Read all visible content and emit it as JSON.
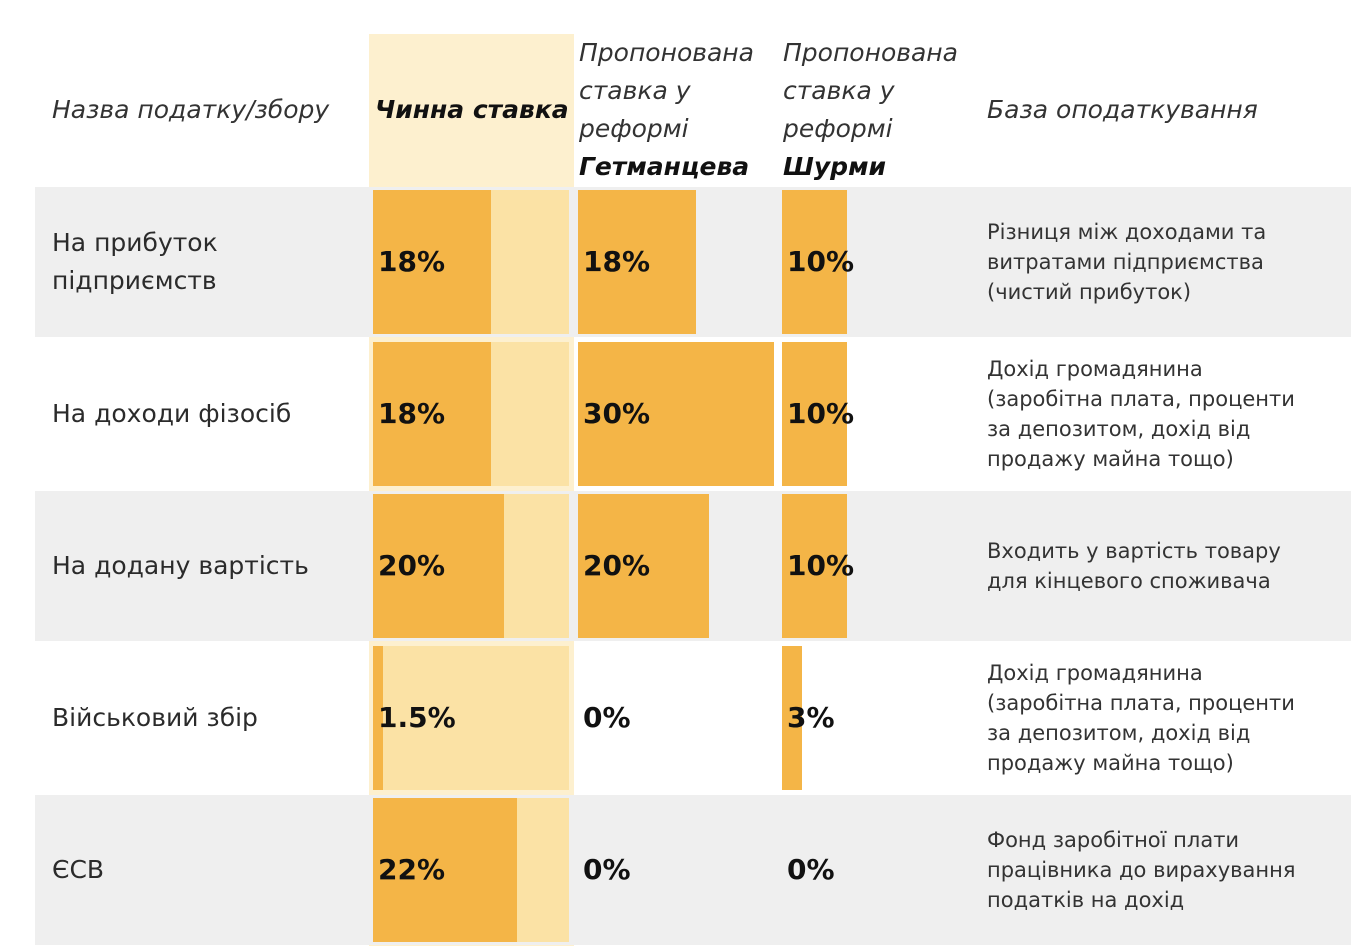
{
  "header": {
    "name": "Назва податку/збору",
    "current": "Чинна ставка",
    "proposed_prefix_1": "Пропонована",
    "proposed_prefix_2": "ставка у",
    "proposed_prefix_3": "реформі",
    "getmantsev": "Гетманцева",
    "shurma": "Шурми",
    "base": "База оподаткування"
  },
  "colors": {
    "bar": "#f4b547",
    "highlight": "#fdf0cf",
    "row_shade": "#efefef",
    "track": "#fbe2a5"
  },
  "chart_data": {
    "type": "table",
    "columns": [
      "Назва податку/збору",
      "Чинна ставка",
      "Пропонована ставка у реформі Гетманцева",
      "Пропонована ставка у реформі Шурми",
      "База оподаткування"
    ],
    "scale_max_percent": 30,
    "rows": [
      {
        "name_lines": [
          "На прибуток",
          "підприємств"
        ],
        "current": 18,
        "current_label": "18%",
        "getmantsev": 18,
        "getmantsev_label": "18%",
        "shurma": 10,
        "shurma_label": "10%",
        "base_lines": [
          "Різниця між доходами та",
          "витратами підприємства",
          "(чистий прибуток)"
        ]
      },
      {
        "name_lines": [
          "На доходи фізосіб"
        ],
        "current": 18,
        "current_label": "18%",
        "getmantsev": 30,
        "getmantsev_label": "30%",
        "shurma": 10,
        "shurma_label": "10%",
        "base_lines": [
          "Дохід громадянина",
          "(заробітна плата, проценти",
          "за депозитом, дохід від",
          "продажу майна тощо)"
        ]
      },
      {
        "name_lines": [
          "На додану вартість"
        ],
        "current": 20,
        "current_label": "20%",
        "getmantsev": 20,
        "getmantsev_label": "20%",
        "shurma": 10,
        "shurma_label": "10%",
        "base_lines": [
          "Входить у вартість товару",
          "для кінцевого споживача"
        ]
      },
      {
        "name_lines": [
          "Військовий збір"
        ],
        "current": 1.5,
        "current_label": "1.5%",
        "getmantsev": 0,
        "getmantsev_label": "0%",
        "shurma": 3,
        "shurma_label": "3%",
        "base_lines": [
          "Дохід громадянина",
          "(заробітна плата, проценти",
          "за депозитом, дохід від",
          "продажу майна тощо)"
        ]
      },
      {
        "name_lines": [
          "ЄСВ"
        ],
        "current": 22,
        "current_label": "22%",
        "getmantsev": 0,
        "getmantsev_label": "0%",
        "shurma": 0,
        "shurma_label": "0%",
        "base_lines": [
          "Фонд заробітної плати",
          "працівника до вирахування",
          "податків на дохід"
        ]
      }
    ]
  }
}
